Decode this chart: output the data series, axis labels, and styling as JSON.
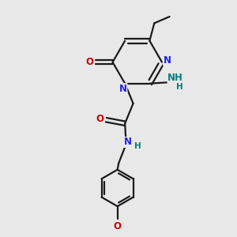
{
  "bg_color": "#e8e8e8",
  "bond_color": "#1a1a1a",
  "N_color": "#2222ee",
  "O_color": "#cc0000",
  "NH2_color": "#008080",
  "line_width": 1.6,
  "fig_size": [
    3.0,
    3.0
  ],
  "dpi": 100,
  "xlim": [
    0,
    10
  ],
  "ylim": [
    0,
    10
  ]
}
